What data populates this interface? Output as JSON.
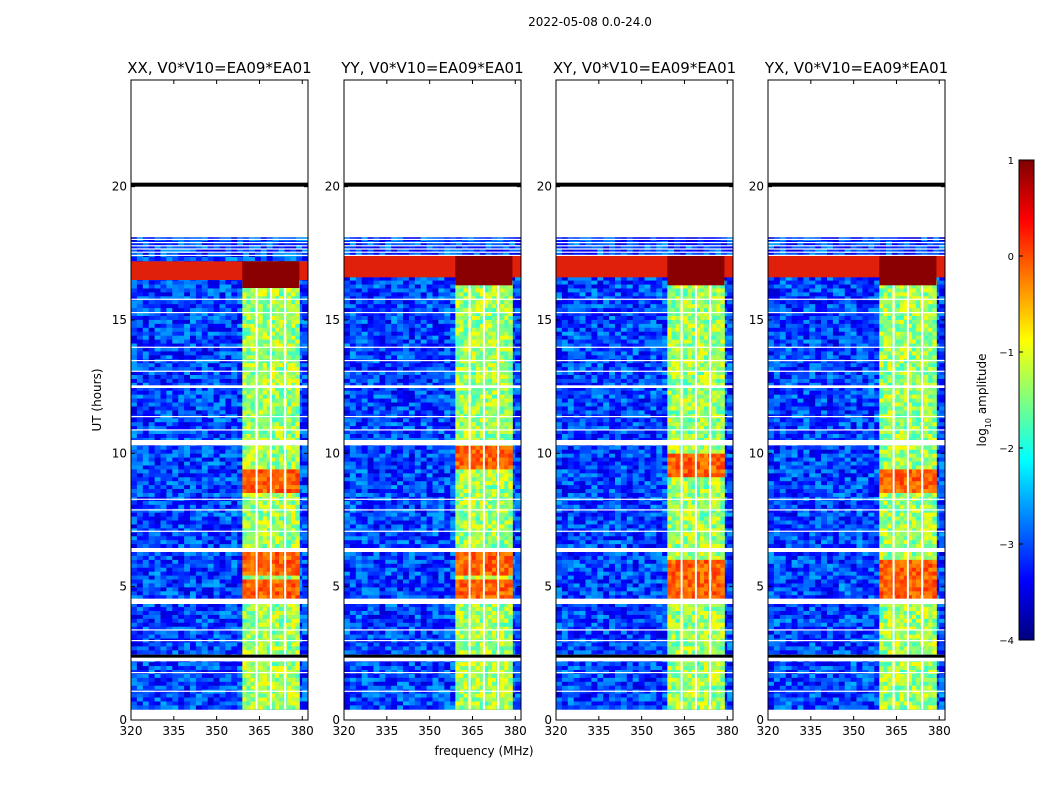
{
  "figure": {
    "suptitle": "2022-05-08 0.0-24.0",
    "xlabel": "frequency (MHz)",
    "ylabel": "UT (hours)",
    "colorbar_label": "log10 amplitude",
    "colorbar_label_base": "log",
    "colorbar_label_sub": "10",
    "colorbar_label_rest": " amplitude",
    "colormap": "jet",
    "colorbar_stops": [
      "#00007f",
      "#0000ff",
      "#007fff",
      "#00ffff",
      "#7fff7f",
      "#ffff00",
      "#ff7f00",
      "#ff0000",
      "#7f0000"
    ]
  },
  "chart_data": [
    {
      "type": "heatmap",
      "title": "XX, V0*V10=EA09*EA01",
      "x_range": [
        320,
        382
      ],
      "y_range": [
        0,
        24
      ],
      "x_ticks": [
        320,
        335,
        350,
        365,
        380
      ],
      "y_ticks": [
        0,
        5,
        10,
        15,
        20
      ],
      "data_extent_hours": [
        0.4,
        18.1
      ],
      "bright_band_mhz": [
        359,
        379
      ],
      "bright_band_gaps_mhz": [
        364,
        369,
        374
      ],
      "hot_row_hours": [
        16.5,
        17.2
      ],
      "blank_rows_hours": [
        [
          2.2,
          2.45
        ],
        [
          4.35,
          4.55
        ],
        [
          6.3,
          6.45
        ],
        [
          10.3,
          10.5
        ],
        [
          12.45,
          12.55
        ],
        [
          20.0,
          20.15
        ]
      ],
      "blob_hours": [
        4.8,
        5.8,
        9.0
      ]
    },
    {
      "type": "heatmap",
      "title": "YY, V0*V10=EA09*EA01",
      "x_range": [
        320,
        382
      ],
      "y_range": [
        0,
        24
      ],
      "x_ticks": [
        320,
        335,
        350,
        365,
        380
      ],
      "y_ticks": [
        0,
        5,
        10,
        15,
        20
      ],
      "data_extent_hours": [
        0.4,
        18.1
      ],
      "bright_band_mhz": [
        359,
        379
      ],
      "bright_band_gaps_mhz": [
        364,
        369,
        374
      ],
      "hot_row_hours": [
        16.6,
        17.4
      ],
      "blank_rows_hours": [
        [
          2.2,
          2.45
        ],
        [
          4.35,
          4.55
        ],
        [
          6.3,
          6.45
        ],
        [
          10.3,
          10.5
        ],
        [
          12.45,
          12.55
        ],
        [
          20.0,
          20.15
        ]
      ],
      "blob_hours": [
        4.8,
        5.8,
        9.8
      ]
    },
    {
      "type": "heatmap",
      "title": "XY, V0*V10=EA09*EA01",
      "x_range": [
        320,
        382
      ],
      "y_range": [
        0,
        24
      ],
      "x_ticks": [
        320,
        335,
        350,
        365,
        380
      ],
      "y_ticks": [
        0,
        5,
        10,
        15,
        20
      ],
      "data_extent_hours": [
        0.4,
        18.1
      ],
      "bright_band_mhz": [
        359,
        379
      ],
      "bright_band_gaps_mhz": [
        364,
        369,
        374
      ],
      "hot_row_hours": [
        16.6,
        17.4
      ],
      "blank_rows_hours": [
        [
          2.2,
          2.45
        ],
        [
          4.35,
          4.55
        ],
        [
          6.3,
          6.45
        ],
        [
          10.3,
          10.5
        ],
        [
          12.45,
          12.55
        ],
        [
          20.0,
          20.15
        ]
      ],
      "blob_hours": [
        4.8,
        5.6,
        9.5
      ]
    },
    {
      "type": "heatmap",
      "title": "YX, V0*V10=EA09*EA01",
      "x_range": [
        320,
        382
      ],
      "y_range": [
        0,
        24
      ],
      "x_ticks": [
        320,
        335,
        350,
        365,
        380
      ],
      "y_ticks": [
        0,
        5,
        10,
        15,
        20
      ],
      "data_extent_hours": [
        0.4,
        18.1
      ],
      "bright_band_mhz": [
        359,
        379
      ],
      "bright_band_gaps_mhz": [
        364,
        369,
        374
      ],
      "hot_row_hours": [
        16.6,
        17.4
      ],
      "blank_rows_hours": [
        [
          2.2,
          2.45
        ],
        [
          4.35,
          4.55
        ],
        [
          6.3,
          6.45
        ],
        [
          10.3,
          10.5
        ],
        [
          12.45,
          12.55
        ],
        [
          20.0,
          20.15
        ]
      ],
      "blob_hours": [
        4.9,
        5.6,
        9.0
      ]
    }
  ],
  "colorbar": {
    "range": [
      -4,
      1
    ],
    "ticks": [
      1,
      0,
      -1,
      -2,
      -3,
      -4
    ]
  }
}
